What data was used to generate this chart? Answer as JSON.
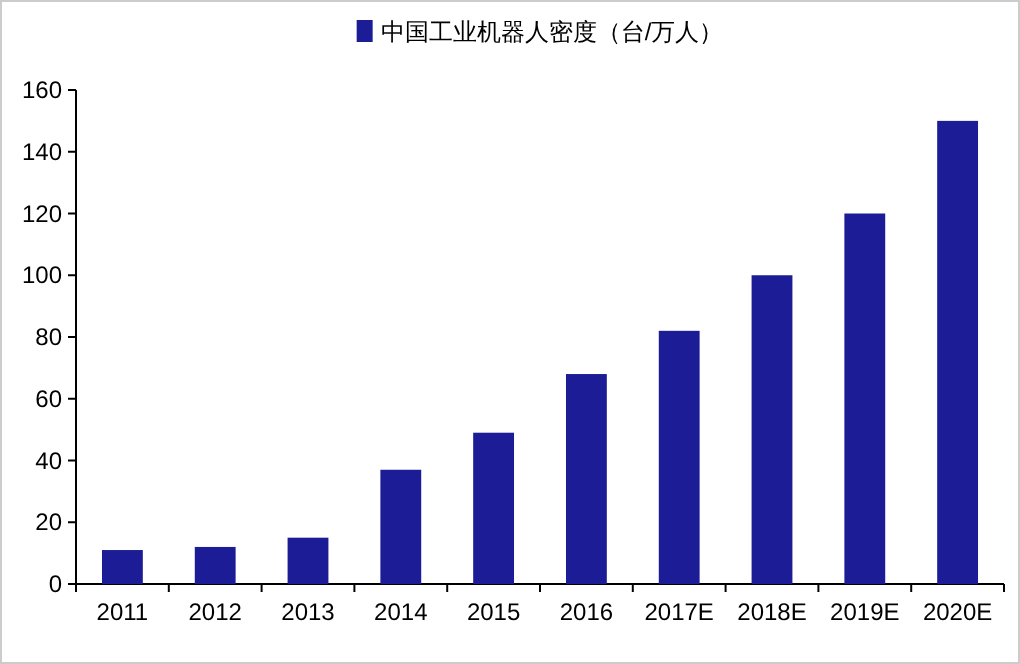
{
  "chart_data": {
    "type": "bar",
    "categories": [
      "2011",
      "2012",
      "2013",
      "2014",
      "2015",
      "2016",
      "2017E",
      "2018E",
      "2019E",
      "2020E"
    ],
    "series": [
      {
        "name": "中国工业机器人密度（台/万人）",
        "color": "#1c1c96",
        "values": [
          11,
          12,
          15,
          37,
          49,
          68,
          82,
          100,
          120,
          150
        ]
      }
    ],
    "ylim": [
      0,
      160
    ],
    "yticks": [
      0,
      20,
      40,
      60,
      80,
      100,
      120,
      140,
      160
    ],
    "legend": "top"
  }
}
